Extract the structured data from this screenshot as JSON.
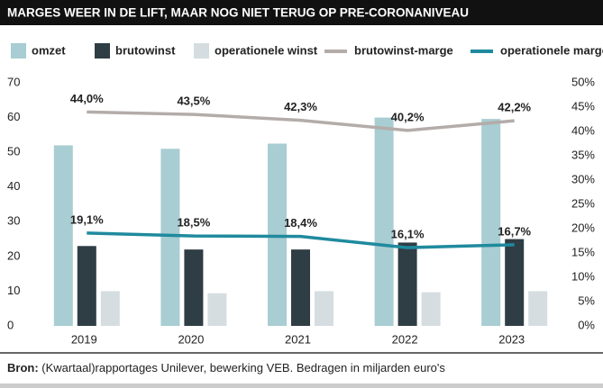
{
  "chart_data": {
    "type": "bar",
    "title": "MARGES WEER IN DE LIFT, MAAR NOG NIET TERUG OP PRE-CORONANIVEAU",
    "categories": [
      "2019",
      "2020",
      "2021",
      "2022",
      "2023"
    ],
    "series": [
      {
        "name": "omzet",
        "type": "bar",
        "color": "#a8cdd2",
        "values": [
          52,
          51,
          52.5,
          60,
          59.6
        ]
      },
      {
        "name": "brutowinst",
        "type": "bar",
        "color": "#2f3d45",
        "values": [
          23,
          22,
          22,
          24,
          25
        ]
      },
      {
        "name": "operationele winst",
        "type": "bar",
        "color": "#d5dde0",
        "values": [
          10,
          9.4,
          10,
          9.7,
          10
        ]
      },
      {
        "name": "brutowinst-marge",
        "type": "line",
        "axis": "y2",
        "color": "#b3aca9",
        "values": [
          44.0,
          43.5,
          42.3,
          40.2,
          42.2
        ],
        "value_labels": [
          "44,0%",
          "43,5%",
          "42,3%",
          "40,2%",
          "42,2%"
        ]
      },
      {
        "name": "operationele marge",
        "type": "line",
        "axis": "y2",
        "color": "#1f8a9e",
        "values": [
          19.1,
          18.5,
          18.4,
          16.1,
          16.7
        ],
        "value_labels": [
          "19,1%",
          "18,5%",
          "18,4%",
          "16,1%",
          "16,7%"
        ]
      }
    ],
    "ylim": [
      0,
      70
    ],
    "yticks": [
      0,
      10,
      20,
      30,
      40,
      50,
      60,
      70
    ],
    "y2lim": [
      0,
      50
    ],
    "y2ticks": [
      {
        "value": 0,
        "label": "0%"
      },
      {
        "value": 5,
        "label": "5%"
      },
      {
        "value": 10,
        "label": "10%"
      },
      {
        "value": 15,
        "label": "15%"
      },
      {
        "value": 20,
        "label": "20%"
      },
      {
        "value": 25,
        "label": "25%"
      },
      {
        "value": 30,
        "label": "30%"
      },
      {
        "value": 35,
        "label": "35%"
      },
      {
        "value": 40,
        "label": "40%"
      },
      {
        "value": 45,
        "label": "45%"
      },
      {
        "value": 50,
        "label": "50%"
      }
    ],
    "source": {
      "label": "Bron:",
      "text": "(Kwartaal)rapportages Unilever, bewerking VEB. Bedragen in miljarden euro's"
    }
  }
}
